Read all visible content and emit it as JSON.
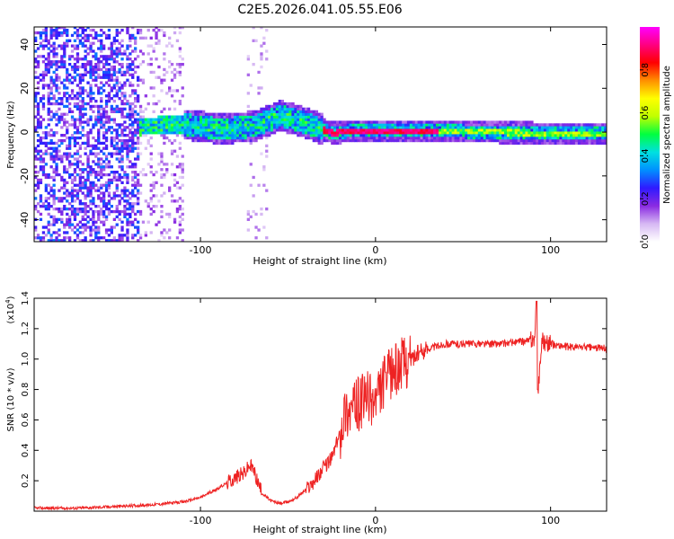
{
  "figure_title": "C2E5.2026.041.05.55.E06",
  "chart_data": [
    {
      "type": "heatmap",
      "title": "C2E5.2026.041.05.55.E06",
      "xlabel": "Height of straight line (km)",
      "ylabel": "Frequency (Hz)",
      "xlim": [
        -195,
        132
      ],
      "ylim": [
        -50,
        48
      ],
      "xticks": [
        -100,
        0,
        100
      ],
      "yticks": [
        -40,
        -20,
        0,
        20,
        40
      ],
      "colorbar": {
        "label": "Normalized spectral amplitude",
        "range": [
          0,
          1
        ],
        "ticks": [
          "0.0",
          "0.2",
          "0.4",
          "0.6",
          "0.8"
        ],
        "tick_values": [
          0.0,
          0.2,
          0.4,
          0.6,
          0.8
        ],
        "colormap": [
          "#ffffff",
          "#d6b8f3",
          "#8a2be2",
          "#2f1aff",
          "#0090ff",
          "#00e0e0",
          "#00ff40",
          "#c0ff00",
          "#ffff00",
          "#ff9000",
          "#ff0000",
          "#ff0080",
          "#ff00ff"
        ]
      },
      "frequency_centerline": [
        {
          "x": -135,
          "y": 2
        },
        {
          "x": -110,
          "y": 3
        },
        {
          "x": -90,
          "y": 1
        },
        {
          "x": -70,
          "y": 2
        },
        {
          "x": -55,
          "y": 7
        },
        {
          "x": -45,
          "y": 5
        },
        {
          "x": -35,
          "y": 2
        },
        {
          "x": -25,
          "y": -1
        },
        {
          "x": -15,
          "y": 0
        },
        {
          "x": 0,
          "y": 0
        },
        {
          "x": 20,
          "y": 0
        },
        {
          "x": 40,
          "y": 0
        },
        {
          "x": 90,
          "y": -1
        },
        {
          "x": 132,
          "y": -1
        }
      ],
      "high_amplitude_region": {
        "x_start": -30,
        "x_end": 35,
        "amplitude": 0.95
      }
    },
    {
      "type": "line",
      "xlabel": "Height of straight line (km)",
      "ylabel": "SNR (10 * v/v)",
      "multiplier": "(x10^4)",
      "multiplier_base": "(x10",
      "multiplier_exp": "4",
      "xlim": [
        -195,
        132
      ],
      "ylim": [
        0,
        1.4
      ],
      "xticks": [
        -100,
        0,
        100
      ],
      "yticks": [
        0.2,
        0.4,
        0.6,
        0.8,
        1.0,
        1.2,
        1.4
      ],
      "ytick_labels": [
        "0.2",
        "0.4",
        "0.6",
        "0.8",
        "1.0",
        "1.2",
        "1.4"
      ],
      "series": [
        {
          "name": "SNR",
          "color": "#ee2222",
          "x": [
            -195,
            -170,
            -150,
            -130,
            -110,
            -100,
            -90,
            -80,
            -75,
            -72,
            -70,
            -65,
            -60,
            -55,
            -50,
            -45,
            -40,
            -35,
            -30,
            -25,
            -20,
            -18,
            -15,
            -10,
            -5,
            0,
            5,
            10,
            15,
            20,
            25,
            30,
            40,
            50,
            60,
            70,
            80,
            88,
            91,
            92,
            93,
            95,
            100,
            110,
            120,
            132
          ],
          "y": [
            0.02,
            0.02,
            0.03,
            0.04,
            0.06,
            0.09,
            0.15,
            0.22,
            0.25,
            0.3,
            0.28,
            0.12,
            0.07,
            0.05,
            0.06,
            0.09,
            0.14,
            0.2,
            0.28,
            0.35,
            0.52,
            0.65,
            0.66,
            0.7,
            0.75,
            0.72,
            0.85,
            0.92,
            0.97,
            1.0,
            1.04,
            1.07,
            1.1,
            1.1,
            1.1,
            1.1,
            1.11,
            1.12,
            1.14,
            1.38,
            0.82,
            1.12,
            1.1,
            1.08,
            1.08,
            1.07
          ]
        }
      ]
    }
  ]
}
